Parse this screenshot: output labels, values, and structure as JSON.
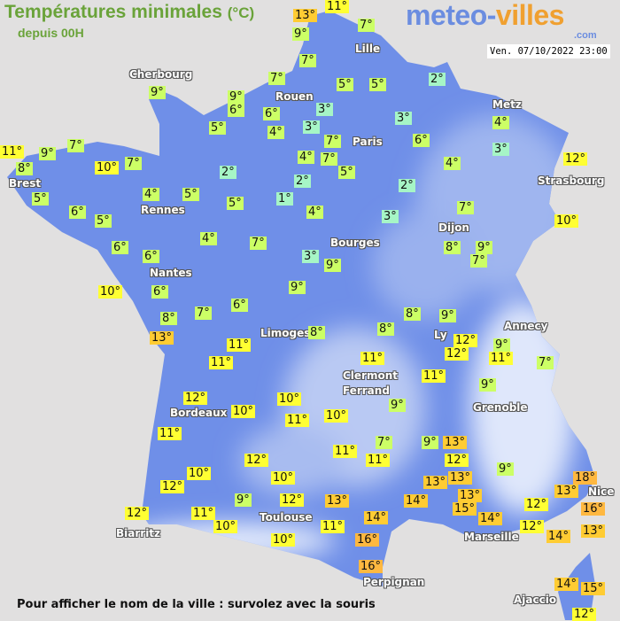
{
  "header": {
    "title": "Températures minimales",
    "unit": "(°C)",
    "subtitle": "depuis 00H",
    "logo_part1": "meteo-",
    "logo_part2": "villes",
    "logo_suffix": ".com",
    "datetime": "Ven. 07/10/2022 23:00"
  },
  "footer": {
    "hint": "Pour afficher le nom de la ville : survolez avec la souris"
  },
  "legend_colors": {
    "cold": "#a6f5c6",
    "cool": "#ccff66",
    "mild": "#ffff33",
    "warm": "#ffcc33",
    "hot": "#ffb840"
  },
  "map_colors": {
    "land": "#6f8fe8",
    "highland": "#c9d6f5",
    "sea": "#e1e0e0"
  },
  "cities": [
    "Cherbourg",
    "Rouen",
    "Lille",
    "Paris",
    "Metz",
    "Strasbourg",
    "Brest",
    "Rennes",
    "Nantes",
    "Bourges",
    "Dijon",
    "Limoges",
    "Annecy",
    "Ly",
    "Clermont",
    "Ferrand",
    "Grenoble",
    "Bordeaux",
    "Toulouse",
    "Biarritz",
    "Marseille",
    "Nice",
    "Perpignan",
    "Ajaccio"
  ],
  "temperatures": [
    "13°",
    "11°",
    "7°",
    "9°",
    "7°",
    "7°",
    "5°",
    "5°",
    "2°",
    "9°",
    "9°",
    "6°",
    "6°",
    "5°",
    "4°",
    "3°",
    "3°",
    "7°",
    "3°",
    "6°",
    "4°",
    "3°",
    "7°",
    "11°",
    "9°",
    "8°",
    "10°",
    "7°",
    "4°",
    "7°",
    "5°",
    "4°",
    "12°",
    "2°",
    "2°",
    "2°",
    "5°",
    "4°",
    "5°",
    "5°",
    "1°",
    "6°",
    "5°",
    "4°",
    "3°",
    "7°",
    "10°",
    "4°",
    "7°",
    "6°",
    "6°",
    "3°",
    "9°",
    "8°",
    "9°",
    "7°",
    "10°",
    "6°",
    "9°",
    "6°",
    "7°",
    "8°",
    "13°",
    "8°",
    "8°",
    "8°",
    "9°",
    "11°",
    "11°",
    "11°",
    "12°",
    "12°",
    "9°",
    "11°",
    "7°",
    "11°",
    "9°",
    "12°",
    "10°",
    "10°",
    "11°",
    "10°",
    "9°",
    "11°",
    "11°",
    "7°",
    "11°",
    "9°",
    "13°",
    "12°",
    "12°",
    "9°",
    "10°",
    "10°",
    "12°",
    "13°",
    "13°",
    "18°",
    "13°",
    "13°",
    "14°",
    "13°",
    "9°",
    "12°",
    "15°",
    "14°",
    "12°",
    "16°",
    "12°",
    "11°",
    "14°",
    "10°",
    "11°",
    "12°",
    "13°",
    "16°",
    "10°",
    "14°",
    "16°",
    "14°",
    "15°",
    "12°"
  ]
}
